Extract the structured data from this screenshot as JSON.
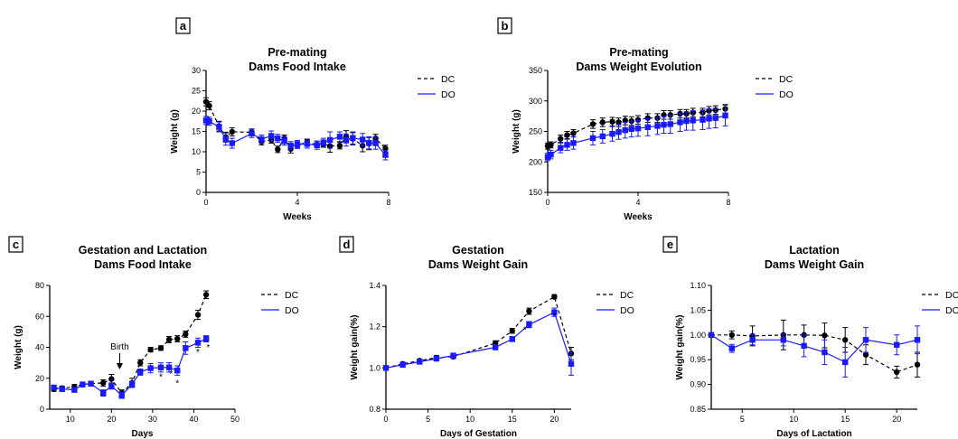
{
  "colors": {
    "DC": "#000000",
    "DO": "#1a1aff",
    "axis": "#000000"
  },
  "chart_data": [
    {
      "panel_label": "a",
      "type": "line",
      "title": "Pre-mating",
      "subtitle": "Dams Food Intake",
      "xlabel": "Weeks",
      "ylabel": "Weight (g)",
      "xlim": [
        0,
        8
      ],
      "ylim": [
        0,
        30
      ],
      "xticks": [
        0,
        4,
        8
      ],
      "xtick_labels": [
        "0",
        "4",
        "8"
      ],
      "yticks": [
        0,
        5,
        10,
        15,
        20,
        25,
        30
      ],
      "ytick_labels": [
        "0",
        "5",
        "10",
        "15",
        "20",
        "25",
        "30"
      ],
      "grid": false,
      "legend_position": "top-right",
      "series": [
        {
          "name": "DC",
          "style": "dashed",
          "marker": "circle",
          "x": [
            0,
            0.14,
            0.57,
            0.86,
            1.14,
            2.0,
            2.43,
            2.86,
            3.14,
            3.43,
            3.71,
            4.0,
            4.43,
            4.86,
            5.14,
            5.43,
            5.86,
            6.14,
            6.43,
            6.86,
            7.14,
            7.43,
            7.86
          ],
          "y": [
            22.3,
            21.3,
            16.3,
            13.6,
            14.9,
            14.8,
            12.5,
            12.9,
            10.6,
            13.3,
            10.7,
            11.7,
            12.3,
            11.8,
            11.9,
            11.4,
            11.5,
            13.7,
            13.2,
            11.5,
            12.0,
            13.3,
            10.8
          ],
          "err": [
            1.0,
            1.0,
            1.2,
            1.2,
            1.0,
            0.8,
            0.8,
            0.8,
            0.8,
            0.8,
            1.0,
            0.8,
            0.8,
            0.8,
            0.8,
            1.5,
            0.8,
            1.5,
            1.5,
            1.5,
            1.5,
            1.0,
            0.8
          ]
        },
        {
          "name": "DO",
          "style": "solid",
          "marker": "square",
          "x": [
            0,
            0.14,
            0.57,
            0.86,
            1.14,
            2.0,
            2.43,
            2.86,
            3.14,
            3.43,
            3.71,
            4.0,
            4.43,
            4.86,
            5.14,
            5.43,
            5.86,
            6.14,
            6.43,
            6.86,
            7.14,
            7.43,
            7.86
          ],
          "y": [
            17.7,
            17.5,
            16.1,
            13.1,
            12.1,
            14.5,
            13.1,
            13.9,
            13.3,
            12.6,
            11.5,
            11.8,
            11.9,
            11.6,
            12.3,
            12.9,
            13.7,
            12.9,
            13.4,
            13.0,
            12.2,
            12.1,
            9.2
          ],
          "err": [
            1.0,
            1.0,
            1.2,
            1.5,
            1.2,
            1.0,
            1.0,
            1.2,
            1.0,
            1.0,
            1.0,
            1.0,
            1.0,
            1.0,
            1.0,
            2.0,
            1.2,
            1.5,
            1.5,
            1.5,
            1.5,
            1.5,
            1.2
          ]
        }
      ]
    },
    {
      "panel_label": "b",
      "type": "line",
      "title": "Pre-mating",
      "subtitle": "Dams Weight Evolution",
      "xlabel": "Weeks",
      "ylabel": "Weight (g)",
      "xlim": [
        0,
        8
      ],
      "ylim": [
        150,
        350
      ],
      "xticks": [
        0,
        4,
        8
      ],
      "xtick_labels": [
        "0",
        "4",
        "8"
      ],
      "yticks": [
        150,
        200,
        250,
        300,
        350
      ],
      "ytick_labels": [
        "150",
        "200",
        "250",
        "300",
        "350"
      ],
      "grid": false,
      "legend_position": "top-right",
      "series": [
        {
          "name": "DC",
          "style": "dashed",
          "marker": "circle",
          "x": [
            0,
            0.14,
            0.57,
            0.86,
            1.14,
            2.0,
            2.43,
            2.86,
            3.14,
            3.43,
            3.71,
            4.0,
            4.43,
            4.86,
            5.14,
            5.43,
            5.86,
            6.14,
            6.43,
            6.86,
            7.14,
            7.43,
            7.86
          ],
          "y": [
            226,
            228,
            238,
            244,
            247,
            262,
            265,
            266,
            265,
            268,
            267,
            269,
            272,
            272,
            277,
            277,
            279,
            279,
            281,
            281,
            284,
            285,
            287
          ],
          "err": [
            5,
            5,
            6,
            6,
            6,
            7,
            7,
            7,
            7,
            7,
            7,
            7,
            7,
            7,
            7,
            7,
            7,
            7,
            7,
            7,
            7,
            7,
            7
          ]
        },
        {
          "name": "DO",
          "style": "solid",
          "marker": "square",
          "x": [
            0,
            0.14,
            0.57,
            0.86,
            1.14,
            2.0,
            2.43,
            2.86,
            3.14,
            3.43,
            3.71,
            4.0,
            4.43,
            4.86,
            5.14,
            5.43,
            5.86,
            6.14,
            6.43,
            6.86,
            7.14,
            7.43,
            7.86
          ],
          "y": [
            208,
            212,
            223,
            228,
            231,
            239,
            242,
            246,
            249,
            252,
            254,
            255,
            257,
            259,
            261,
            262,
            265,
            267,
            268,
            269,
            271,
            272,
            276
          ],
          "err": [
            6,
            7,
            8,
            9,
            10,
            11,
            11,
            12,
            12,
            13,
            13,
            13,
            14,
            14,
            14,
            15,
            15,
            15,
            16,
            16,
            16,
            16,
            17
          ]
        }
      ]
    },
    {
      "panel_label": "c",
      "type": "line",
      "title": "Gestation and Lactation",
      "subtitle": "Dams Food Intake",
      "xlabel": "Days",
      "ylabel": "Weight (g)",
      "xlim": [
        5,
        50
      ],
      "ylim": [
        0,
        80
      ],
      "xticks": [
        10,
        20,
        30,
        40,
        50
      ],
      "xtick_labels": [
        "10",
        "20",
        "30",
        "40",
        "50"
      ],
      "yticks": [
        0,
        20,
        40,
        60,
        80
      ],
      "ytick_labels": [
        "0",
        "20",
        "40",
        "60",
        "80"
      ],
      "grid": false,
      "legend_position": "top-right",
      "annotation": {
        "text": "Birth",
        "x": 22
      },
      "significance": [
        {
          "x": 32,
          "y": 19,
          "text": "*"
        },
        {
          "x": 34.5,
          "y": 21,
          "text": "*"
        },
        {
          "x": 36,
          "y": 15,
          "text": "*"
        },
        {
          "x": 41,
          "y": 35,
          "text": "*"
        },
        {
          "x": 43.5,
          "y": 38,
          "text": "*"
        }
      ],
      "series": [
        {
          "name": "DC",
          "style": "dashed",
          "marker": "circle",
          "x": [
            6,
            8,
            11,
            13,
            15,
            18,
            20,
            22.5,
            25,
            27,
            29.5,
            32,
            34,
            36,
            38,
            41,
            43
          ],
          "y": [
            13,
            13.5,
            14.5,
            16,
            16.5,
            17,
            19.5,
            10.5,
            17,
            30,
            38.5,
            39.5,
            45,
            45.5,
            48.5,
            61,
            74
          ],
          "err": [
            1.5,
            1.5,
            1.5,
            1.5,
            1.5,
            2,
            3,
            2,
            3,
            2,
            1.5,
            1.5,
            2,
            2,
            2,
            3,
            2.5
          ]
        },
        {
          "name": "DO",
          "style": "solid",
          "marker": "square",
          "x": [
            6,
            8,
            11,
            13,
            15,
            18,
            20,
            22.5,
            25,
            27,
            29.5,
            32,
            34,
            36,
            38,
            41,
            43
          ],
          "y": [
            14,
            13,
            12.5,
            16,
            16.5,
            10.5,
            15,
            9,
            16,
            24,
            26.5,
            27,
            27,
            25,
            39.5,
            43,
            45.5
          ],
          "err": [
            1.5,
            1.5,
            1.5,
            1.5,
            1.5,
            2,
            2,
            2,
            2,
            2,
            3,
            3,
            3,
            3,
            4,
            3,
            2
          ]
        }
      ]
    },
    {
      "panel_label": "d",
      "type": "line",
      "title": "Gestation",
      "subtitle": "Dams Weight Gain",
      "xlabel": "Days of Gestation",
      "ylabel": "Weight gain(%)",
      "xlim": [
        0,
        22
      ],
      "ylim": [
        0.8,
        1.4
      ],
      "xticks": [
        0,
        5,
        10,
        15,
        20
      ],
      "xtick_labels": [
        "0",
        "5",
        "10",
        "15",
        "20"
      ],
      "yticks": [
        0.8,
        1.0,
        1.2,
        1.4
      ],
      "ytick_labels": [
        "0.8",
        "1.0",
        "1.2",
        "1.4"
      ],
      "grid": false,
      "legend_position": "top-right",
      "significance": [
        {
          "x": 16.5,
          "y": 1.17,
          "text": "*"
        },
        {
          "x": 20,
          "y": 1.235,
          "text": "*"
        }
      ],
      "series": [
        {
          "name": "DC",
          "style": "dashed",
          "marker": "circle",
          "x": [
            0,
            2,
            4,
            6,
            8,
            13,
            15,
            17,
            20,
            22
          ],
          "y": [
            1.0,
            1.02,
            1.035,
            1.05,
            1.055,
            1.12,
            1.18,
            1.275,
            1.345,
            1.07
          ],
          "err": [
            0.005,
            0.008,
            0.008,
            0.01,
            0.01,
            0.012,
            0.012,
            0.015,
            0.01,
            0.03
          ]
        },
        {
          "name": "DO",
          "style": "solid",
          "marker": "square",
          "x": [
            0,
            2,
            4,
            6,
            8,
            13,
            15,
            17,
            20,
            22
          ],
          "y": [
            1.0,
            1.015,
            1.03,
            1.045,
            1.06,
            1.1,
            1.14,
            1.21,
            1.27,
            1.02
          ],
          "err": [
            0.005,
            0.008,
            0.008,
            0.01,
            0.01,
            0.012,
            0.012,
            0.015,
            0.02,
            0.055
          ]
        }
      ]
    },
    {
      "panel_label": "e",
      "type": "line",
      "title": "Lactation",
      "subtitle": "Dams Weight Gain",
      "xlabel": "Days of Lactation",
      "ylabel": "Weight gain(%)",
      "xlim": [
        2,
        22
      ],
      "ylim": [
        0.85,
        1.1
      ],
      "xticks": [
        5,
        10,
        15,
        20
      ],
      "xtick_labels": [
        "5",
        "10",
        "15",
        "20"
      ],
      "yticks": [
        0.85,
        0.9,
        0.95,
        1.0,
        1.05,
        1.1
      ],
      "ytick_labels": [
        "0.85",
        "0.90",
        "0.95",
        "1.00",
        "1.05",
        "1.10"
      ],
      "grid": false,
      "legend_position": "top-right",
      "series": [
        {
          "name": "DC",
          "style": "dashed",
          "marker": "circle",
          "x": [
            2,
            4,
            6,
            9,
            11,
            13,
            15,
            17,
            20,
            22
          ],
          "y": [
            1.0,
            1.0,
            0.998,
            1.0,
            1.0,
            0.999,
            0.99,
            0.96,
            0.925,
            0.94
          ],
          "err": [
            0.003,
            0.008,
            0.02,
            0.03,
            0.02,
            0.025,
            0.025,
            0.02,
            0.012,
            0.025
          ]
        },
        {
          "name": "DO",
          "style": "solid",
          "marker": "square",
          "x": [
            2,
            4,
            6,
            9,
            11,
            13,
            15,
            17,
            20,
            22
          ],
          "y": [
            1.0,
            0.973,
            0.99,
            0.99,
            0.978,
            0.965,
            0.945,
            0.99,
            0.98,
            0.99
          ],
          "err": [
            0.003,
            0.008,
            0.01,
            0.012,
            0.022,
            0.025,
            0.03,
            0.025,
            0.02,
            0.028
          ]
        }
      ]
    }
  ]
}
